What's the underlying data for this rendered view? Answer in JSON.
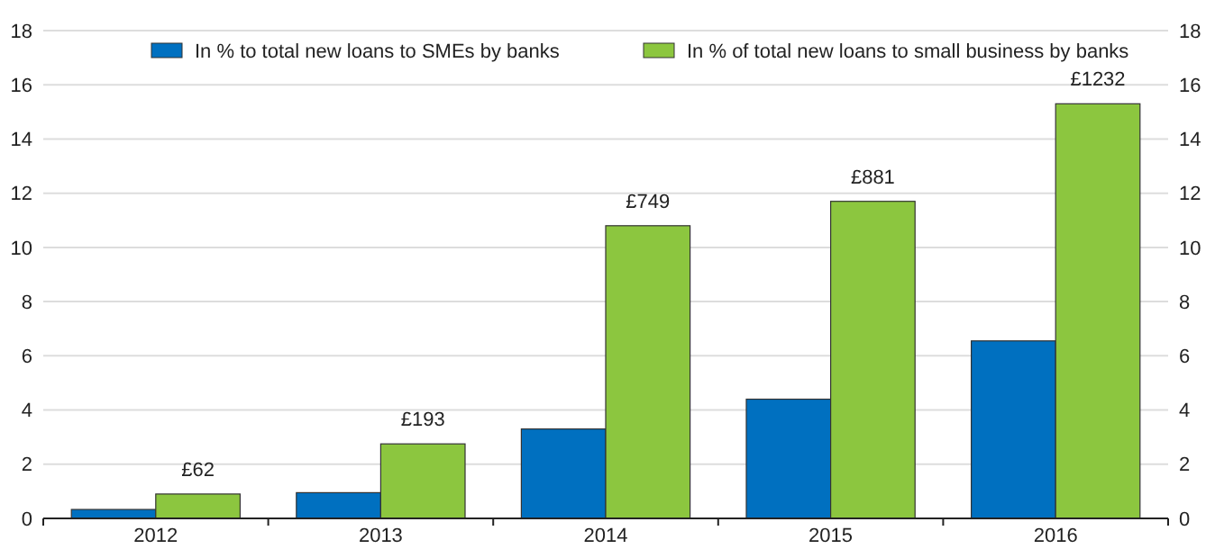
{
  "chart_data": {
    "type": "bar",
    "categories": [
      "2012",
      "2013",
      "2014",
      "2015",
      "2016"
    ],
    "series": [
      {
        "name": "In % to total new loans to SMEs by banks",
        "color": "#0070c0",
        "values": [
          0.33,
          0.95,
          3.3,
          4.4,
          6.55
        ]
      },
      {
        "name": "In % of total new loans to small business by banks",
        "color": "#8cc63f",
        "values": [
          0.9,
          2.75,
          10.8,
          11.7,
          15.3
        ]
      }
    ],
    "annotations": [
      {
        "text": "£62",
        "x": "2012",
        "y": 0.9
      },
      {
        "text": "£193",
        "x": "2013",
        "y": 2.75
      },
      {
        "text": "£749",
        "x": "2014",
        "y": 10.8
      },
      {
        "text": "£881",
        "x": "2015",
        "y": 11.7
      },
      {
        "text": "£1232",
        "x": "2016",
        "y": 15.3
      }
    ],
    "ylim": [
      0,
      18
    ],
    "yticks": [
      0,
      2,
      4,
      6,
      8,
      10,
      12,
      14,
      16,
      18
    ],
    "y2lim": [
      0,
      18
    ],
    "y2ticks": [
      0,
      2,
      4,
      6,
      8,
      10,
      12,
      14,
      16,
      18
    ],
    "grid": "y",
    "legend": "top"
  }
}
